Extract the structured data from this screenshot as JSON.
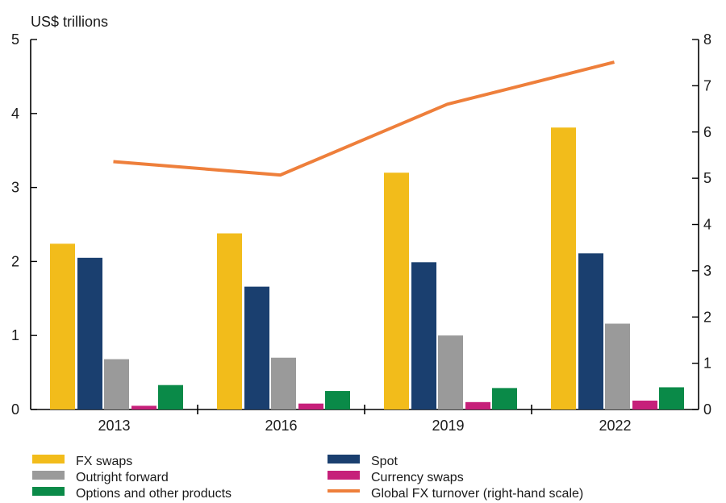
{
  "chart_data": {
    "type": "bar",
    "unit_label": "US$ trillions",
    "categories": [
      "2013",
      "2016",
      "2019",
      "2022"
    ],
    "ylim_left": [
      0,
      5
    ],
    "ylim_right": [
      0,
      8
    ],
    "yticks_left": [
      "0",
      "1",
      "2",
      "3",
      "4",
      "5"
    ],
    "yticks_right": [
      "0",
      "1",
      "2",
      "3",
      "4",
      "5",
      "6",
      "7",
      "8"
    ],
    "grid": false,
    "legend_placement": "bottom",
    "series": [
      {
        "name": "FX swaps",
        "type": "bar",
        "axis": "left",
        "color": "#f2bc1b",
        "values": [
          2.24,
          2.38,
          3.2,
          3.81
        ]
      },
      {
        "name": "Spot",
        "type": "bar",
        "axis": "left",
        "color": "#1a3f6f",
        "values": [
          2.05,
          1.66,
          1.99,
          2.11
        ]
      },
      {
        "name": "Outright forward",
        "type": "bar",
        "axis": "left",
        "color": "#9a9a9a",
        "values": [
          0.68,
          0.7,
          1.0,
          1.16
        ]
      },
      {
        "name": "Currency swaps",
        "type": "bar",
        "axis": "left",
        "color": "#c6207a",
        "values": [
          0.05,
          0.08,
          0.1,
          0.12
        ]
      },
      {
        "name": "Options and other products",
        "type": "bar",
        "axis": "left",
        "color": "#0a8a48",
        "values": [
          0.33,
          0.25,
          0.29,
          0.3
        ]
      },
      {
        "name": "Global FX turnover (right-hand scale)",
        "type": "line",
        "axis": "right",
        "color": "#ee7f3b",
        "values": [
          5.36,
          5.07,
          6.6,
          7.51
        ]
      }
    ],
    "legend": [
      {
        "label": "FX swaps",
        "series": 0
      },
      {
        "label": "Spot",
        "series": 1
      },
      {
        "label": "Outright forward",
        "series": 2
      },
      {
        "label": "Currency swaps",
        "series": 3
      },
      {
        "label": "Options and other products",
        "series": 4
      },
      {
        "label": "Global FX turnover (right-hand scale)",
        "series": 5
      }
    ]
  }
}
